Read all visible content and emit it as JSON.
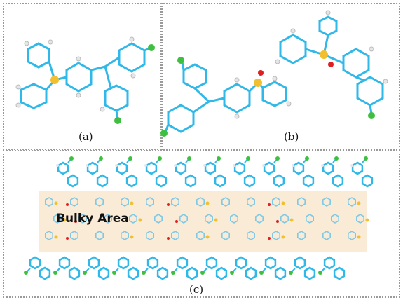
{
  "figure": {
    "panels": [
      {
        "id": "a",
        "caption": "(a)"
      },
      {
        "id": "b",
        "caption": "(b)"
      },
      {
        "id": "c",
        "caption": "(c)",
        "region_label": "Bulky Area"
      }
    ]
  },
  "colors": {
    "carbon": "#2fb8e8",
    "hydrogen": "#e6e6ea",
    "sulfur": "#f0c030",
    "oxygen": "#e02020",
    "chlorine": "#3fbf3f",
    "bulky_area": "#f8e7cf"
  }
}
